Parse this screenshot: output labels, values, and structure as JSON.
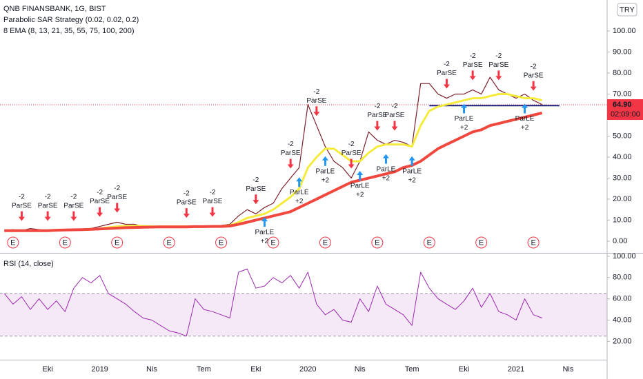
{
  "chart_data": [
    {
      "type": "line",
      "title": "QNB FINANSBANK, 1G, BIST",
      "subtitle": "Parabolic SAR Strategy (0.02, 0.02, 0.2)",
      "subtitle2": "8 EMA (8, 13, 21, 35, 55, 75, 100, 200)",
      "currency": "TRY",
      "categories": [
        null,
        null,
        null,
        null,
        null,
        "Eki",
        null,
        null,
        null,
        null,
        null,
        "2019",
        null,
        null,
        null,
        null,
        null,
        "Nis",
        null,
        null,
        null,
        null,
        null,
        "Tem",
        null,
        null,
        null,
        null,
        null,
        "Eki",
        null,
        null,
        null,
        null,
        null,
        "2020",
        null,
        null,
        null,
        null,
        null,
        "Nis",
        null,
        null,
        null,
        null,
        null,
        "Tem",
        null,
        null,
        null,
        null,
        null,
        "Eki",
        null,
        null,
        null,
        null,
        null,
        "2021",
        null,
        null,
        null,
        null,
        null,
        "Nis",
        null,
        null,
        null,
        null
      ],
      "series": [
        {
          "color": "#7b1f2a",
          "width": 1.2,
          "values": [
            5,
            5.5,
            5,
            6,
            5.5,
            5,
            5.5,
            5,
            5,
            5.5,
            6,
            7,
            8,
            9,
            8,
            8,
            7,
            7,
            6.5,
            7,
            7,
            6.5,
            7,
            7,
            7,
            7.5,
            8,
            12,
            15,
            13,
            16,
            18,
            25,
            30,
            35,
            65,
            55,
            45,
            38,
            35,
            30,
            38,
            52,
            48,
            46,
            48,
            47,
            45,
            75,
            75,
            70,
            68,
            70,
            70,
            72,
            70,
            78,
            72,
            70,
            68,
            70,
            67,
            65,
            null,
            null,
            null,
            null,
            null,
            null,
            null
          ]
        },
        {
          "color": "#f5eb3b",
          "width": 3,
          "values": [
            null,
            null,
            null,
            null,
            null,
            null,
            null,
            null,
            null,
            null,
            null,
            6,
            6.5,
            7,
            7.2,
            7.3,
            7.2,
            7,
            7,
            7,
            7,
            7,
            7,
            7,
            7,
            7.2,
            7.5,
            9,
            11,
            12,
            13,
            15,
            18,
            21,
            25,
            35,
            40,
            44,
            44,
            41,
            38,
            38,
            42,
            45,
            46,
            46,
            46,
            45,
            55,
            62,
            64,
            65,
            66,
            67,
            68,
            68,
            69,
            70,
            70,
            69,
            68,
            68,
            67,
            null,
            null,
            null,
            null,
            null,
            null,
            null
          ]
        },
        {
          "color": "#f0483e",
          "width": 4,
          "values": [
            5,
            5,
            5,
            5,
            5,
            5,
            5.2,
            5.3,
            5.4,
            5.5,
            5.6,
            5.8,
            6,
            6.2,
            6.4,
            6.5,
            6.6,
            6.7,
            6.8,
            6.8,
            6.8,
            6.8,
            6.9,
            6.9,
            7,
            7,
            7.2,
            8,
            9,
            10,
            11,
            12,
            13,
            14,
            16,
            18,
            20,
            22,
            24,
            26,
            28,
            29,
            30,
            31,
            32,
            33,
            35,
            36,
            38,
            41,
            44,
            46,
            48,
            50,
            52,
            53,
            55,
            56,
            57,
            58,
            59,
            60,
            61,
            null,
            null,
            null,
            null,
            null,
            null,
            null
          ]
        }
      ],
      "ylim": [
        -5.6,
        114.75
      ],
      "yticks": [
        {
          "value": 0,
          "label": "0.00"
        },
        {
          "value": 10,
          "label": "10.00"
        },
        {
          "value": 20,
          "label": "20.00"
        },
        {
          "value": 30,
          "label": "30.00"
        },
        {
          "value": 40,
          "label": "40.00"
        },
        {
          "value": 50,
          "label": "50.00"
        },
        {
          "value": 60,
          "label": "60.00"
        },
        {
          "value": 70,
          "label": "70.00"
        },
        {
          "value": 80,
          "label": "80.00"
        },
        {
          "value": 90,
          "label": "90.00"
        },
        {
          "value": 100,
          "label": "100.00"
        }
      ],
      "last_price": {
        "value": 64.9,
        "label": "64.90",
        "color": "#f23645"
      },
      "countdown": "02:09:00",
      "hline": {
        "value": 64.5,
        "from": 49,
        "to": 64,
        "color": "#1a237e"
      },
      "signals": [
        {
          "label": "ParSE",
          "qty": "-2",
          "at": 2
        },
        {
          "label": "ParSE",
          "qty": "-2",
          "at": 5
        },
        {
          "label": "ParSE",
          "qty": "-2",
          "at": 8
        },
        {
          "label": "ParSE",
          "qty": "-2",
          "at": 11
        },
        {
          "label": "ParSE",
          "qty": "-2",
          "at": 13
        },
        {
          "label": "ParSE",
          "qty": "-2",
          "at": 21
        },
        {
          "label": "ParSE",
          "qty": "-2",
          "at": 24
        },
        {
          "label": "ParSE",
          "qty": "-2",
          "at": 29
        },
        {
          "label": "ParSE",
          "qty": "-2",
          "at": 33
        },
        {
          "label": "ParSE",
          "qty": "-2",
          "at": 36
        },
        {
          "label": "ParSE",
          "qty": "-2",
          "at": 40
        },
        {
          "label": "ParSE",
          "qty": "-2",
          "at": 43
        },
        {
          "label": "ParSE",
          "qty": "-2",
          "at": 45
        },
        {
          "label": "ParSE",
          "qty": "-2",
          "at": 51
        },
        {
          "label": "ParSE",
          "qty": "-2",
          "at": 54
        },
        {
          "label": "ParSE",
          "qty": "-2",
          "at": 57
        },
        {
          "label": "ParSE",
          "qty": "-2",
          "at": 61
        },
        {
          "label": "ParLE",
          "qty": "+2",
          "at": 30
        },
        {
          "label": "ParLE",
          "qty": "+2",
          "at": 34
        },
        {
          "label": "ParLE",
          "qty": "+2",
          "at": 37
        },
        {
          "label": "ParLE",
          "qty": "+2",
          "at": 41
        },
        {
          "label": "ParLE",
          "qty": "+2",
          "at": 44
        },
        {
          "label": "ParLE",
          "qty": "+2",
          "at": 47
        },
        {
          "label": "ParLE",
          "qty": "+2",
          "at": 53
        },
        {
          "label": "ParLE",
          "qty": "+2",
          "at": 60
        }
      ],
      "earnings_label": "E",
      "earnings_at": [
        1,
        7,
        13,
        19,
        25,
        31,
        37,
        43,
        49,
        55,
        61
      ]
    },
    {
      "type": "line",
      "title": "RSI (14, close)",
      "series": [
        {
          "color": "#9c27b0",
          "width": 1,
          "values": [
            65,
            55,
            62,
            50,
            60,
            50,
            58,
            48,
            70,
            80,
            75,
            82,
            65,
            60,
            55,
            48,
            42,
            40,
            35,
            30,
            28,
            25,
            60,
            50,
            48,
            45,
            42,
            85,
            88,
            70,
            72,
            80,
            75,
            82,
            70,
            85,
            55,
            45,
            50,
            40,
            38,
            60,
            48,
            72,
            55,
            50,
            45,
            35,
            85,
            70,
            60,
            55,
            50,
            58,
            70,
            52,
            65,
            48,
            45,
            40,
            60,
            45,
            42,
            null,
            null,
            null,
            null,
            null,
            null,
            null
          ]
        }
      ],
      "ylim": [
        2.8,
        102.5
      ],
      "yticks": [
        {
          "value": 20,
          "label": "20.00"
        },
        {
          "value": 40,
          "label": "40.00"
        },
        {
          "value": 60,
          "label": "60.00"
        },
        {
          "value": 80,
          "label": "80.00"
        },
        {
          "value": 100,
          "label": "100.00"
        }
      ],
      "band": [
        25,
        65
      ]
    }
  ]
}
